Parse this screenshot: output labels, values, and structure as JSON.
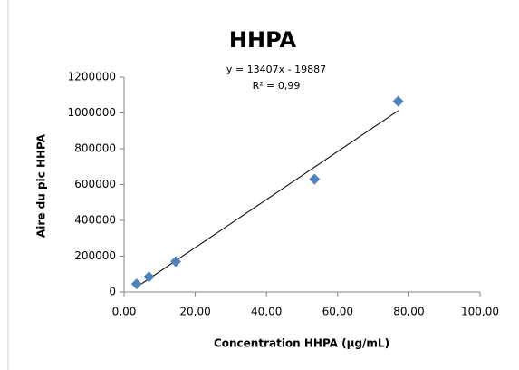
{
  "chart_data": {
    "type": "scatter",
    "title": "HHPA",
    "annotations": [
      "y = 13407x - 19887",
      "R² = 0,99"
    ],
    "x_label": "Concentration HHPA (µg/mL)",
    "y_label": "Aire du pic HHPA",
    "series": [
      {
        "color": "#4f81bd",
        "x": [
          3.5,
          7,
          14.5,
          53.5,
          77
        ],
        "values": [
          45000,
          85000,
          170000,
          630000,
          1065000
        ]
      }
    ],
    "trendline": {
      "slope": 13407,
      "intercept": -19887,
      "color": "#000000"
    },
    "xlim": [
      0,
      100
    ],
    "xticks": [
      {
        "value": 0,
        "label": "0,00"
      },
      {
        "value": 20,
        "label": "20,00"
      },
      {
        "value": 40,
        "label": "40,00"
      },
      {
        "value": 60,
        "label": "60,00"
      },
      {
        "value": 80,
        "label": "80,00"
      },
      {
        "value": 100,
        "label": "100,00"
      }
    ],
    "ylim": [
      0,
      1200000
    ],
    "yticks": [
      0,
      200000,
      400000,
      600000,
      800000,
      1000000,
      1200000
    ],
    "grid": false
  }
}
